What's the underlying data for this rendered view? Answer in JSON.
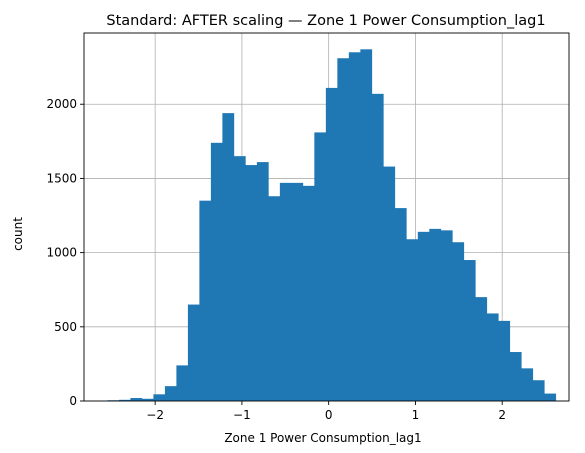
{
  "chart_data": {
    "type": "bar",
    "subtype": "histogram",
    "title": "Standard: AFTER scaling — Zone 1 Power Consumption_lag1",
    "xlabel": "Zone 1 Power Consumption_lag1",
    "ylabel": "count",
    "xlim": [
      -2.82,
      2.77
    ],
    "ylim": [
      0,
      2480
    ],
    "xticks": [
      -2,
      -1,
      0,
      1,
      2
    ],
    "xtick_labels": [
      "−2",
      "−1",
      "0",
      "1",
      "2"
    ],
    "yticks": [
      0,
      500,
      1000,
      1500,
      2000
    ],
    "ytick_labels": [
      "0",
      "500",
      "1000",
      "1500",
      "2000"
    ],
    "grid": true,
    "bar_color": "#1f77b4",
    "bin_width": 0.1325,
    "bin_start": -2.55,
    "counts": [
      5,
      8,
      20,
      15,
      45,
      100,
      240,
      650,
      1350,
      1740,
      1940,
      1650,
      1590,
      1610,
      1380,
      1470,
      1470,
      1450,
      1810,
      2110,
      2310,
      2350,
      2370,
      2070,
      1580,
      1300,
      1090,
      1140,
      1160,
      1150,
      1070,
      950,
      700,
      590,
      540,
      330,
      220,
      140,
      50
    ]
  }
}
